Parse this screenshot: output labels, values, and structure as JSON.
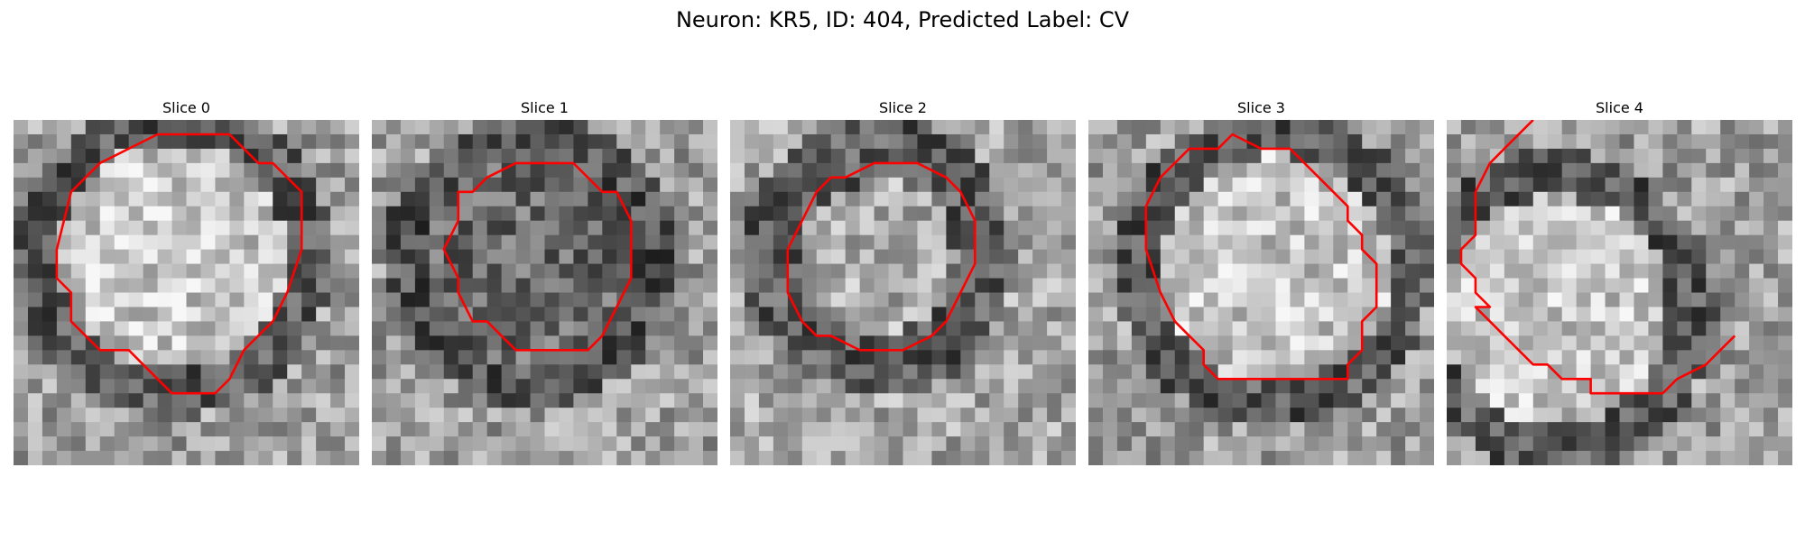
{
  "figure_title": "Neuron: KR5, ID: 404, Predicted Label: CV",
  "panels": [
    {
      "label": "Slice 0",
      "contour_color": "#ff0000",
      "tone": "bright-center-dark-ring",
      "contour": [
        [
          12,
          1
        ],
        [
          15,
          1
        ],
        [
          17,
          3
        ],
        [
          18,
          3
        ],
        [
          20,
          5
        ],
        [
          20,
          9
        ],
        [
          19,
          12
        ],
        [
          18,
          14
        ],
        [
          16,
          16
        ],
        [
          15,
          18
        ],
        [
          14,
          19
        ],
        [
          11,
          19
        ],
        [
          9,
          17
        ],
        [
          8,
          16
        ],
        [
          6,
          16
        ],
        [
          4,
          14
        ],
        [
          4,
          12
        ],
        [
          3,
          11
        ],
        [
          3,
          9
        ],
        [
          4,
          5
        ],
        [
          5,
          4
        ],
        [
          6,
          3
        ],
        [
          8,
          2
        ],
        [
          10,
          1
        ]
      ]
    },
    {
      "label": "Slice 1",
      "contour_color": "#ff0000",
      "tone": "dark-center-dark-ring",
      "contour": [
        [
          10,
          3
        ],
        [
          14,
          3
        ],
        [
          16,
          5
        ],
        [
          17,
          5
        ],
        [
          18,
          7
        ],
        [
          18,
          11
        ],
        [
          17,
          13
        ],
        [
          16,
          15
        ],
        [
          15,
          16
        ],
        [
          12,
          16
        ],
        [
          10,
          16
        ],
        [
          9,
          15
        ],
        [
          8,
          14
        ],
        [
          7,
          14
        ],
        [
          6,
          12
        ],
        [
          6,
          11
        ],
        [
          5,
          9
        ],
        [
          6,
          7
        ],
        [
          6,
          5
        ],
        [
          7,
          5
        ],
        [
          8,
          4
        ]
      ]
    },
    {
      "label": "Slice 2",
      "contour_color": "#ff0000",
      "tone": "mid-center-dark-ring",
      "contour": [
        [
          10,
          3
        ],
        [
          13,
          3
        ],
        [
          15,
          4
        ],
        [
          16,
          5
        ],
        [
          17,
          7
        ],
        [
          17,
          10
        ],
        [
          16,
          12
        ],
        [
          15,
          14
        ],
        [
          14,
          15
        ],
        [
          12,
          16
        ],
        [
          9,
          16
        ],
        [
          7,
          15
        ],
        [
          6,
          15
        ],
        [
          5,
          14
        ],
        [
          4,
          12
        ],
        [
          4,
          9
        ],
        [
          5,
          7
        ],
        [
          6,
          5
        ],
        [
          7,
          4
        ],
        [
          8,
          4
        ]
      ]
    },
    {
      "label": "Slice 3",
      "contour_color": "#ff0000",
      "tone": "bright-center-dark-ring",
      "contour": [
        [
          10,
          1
        ],
        [
          12,
          2
        ],
        [
          14,
          2
        ],
        [
          16,
          4
        ],
        [
          17,
          5
        ],
        [
          18,
          6
        ],
        [
          18,
          7
        ],
        [
          19,
          8
        ],
        [
          19,
          9
        ],
        [
          20,
          10
        ],
        [
          20,
          13
        ],
        [
          19,
          14
        ],
        [
          19,
          16
        ],
        [
          18,
          17
        ],
        [
          18,
          18
        ],
        [
          17,
          18
        ],
        [
          16,
          18
        ],
        [
          12,
          18
        ],
        [
          9,
          18
        ],
        [
          8,
          17
        ],
        [
          8,
          16
        ],
        [
          7,
          15
        ],
        [
          6,
          14
        ],
        [
          5,
          12
        ],
        [
          4,
          9
        ],
        [
          4,
          6
        ],
        [
          5,
          4
        ],
        [
          7,
          2
        ],
        [
          9,
          2
        ]
      ]
    },
    {
      "label": "Slice 4",
      "contour_color": "#ff0000",
      "tone": "bright-center-dark-ring",
      "contour": [
        [
          6,
          0
        ],
        [
          4,
          2
        ],
        [
          3,
          3
        ],
        [
          2,
          5
        ],
        [
          2,
          8
        ],
        [
          1,
          9
        ],
        [
          1,
          10
        ],
        [
          2,
          11
        ],
        [
          2,
          12
        ],
        [
          3,
          13
        ],
        [
          2,
          13
        ],
        [
          3,
          14
        ],
        [
          4,
          15
        ],
        [
          6,
          17
        ],
        [
          7,
          17
        ],
        [
          8,
          18
        ],
        [
          9,
          18
        ],
        [
          10,
          18
        ],
        [
          10,
          19
        ],
        [
          11,
          19
        ],
        [
          13,
          19
        ],
        [
          15,
          19
        ],
        [
          16,
          18
        ],
        [
          18,
          17
        ],
        [
          19,
          16
        ],
        [
          20,
          15
        ]
      ]
    }
  ]
}
